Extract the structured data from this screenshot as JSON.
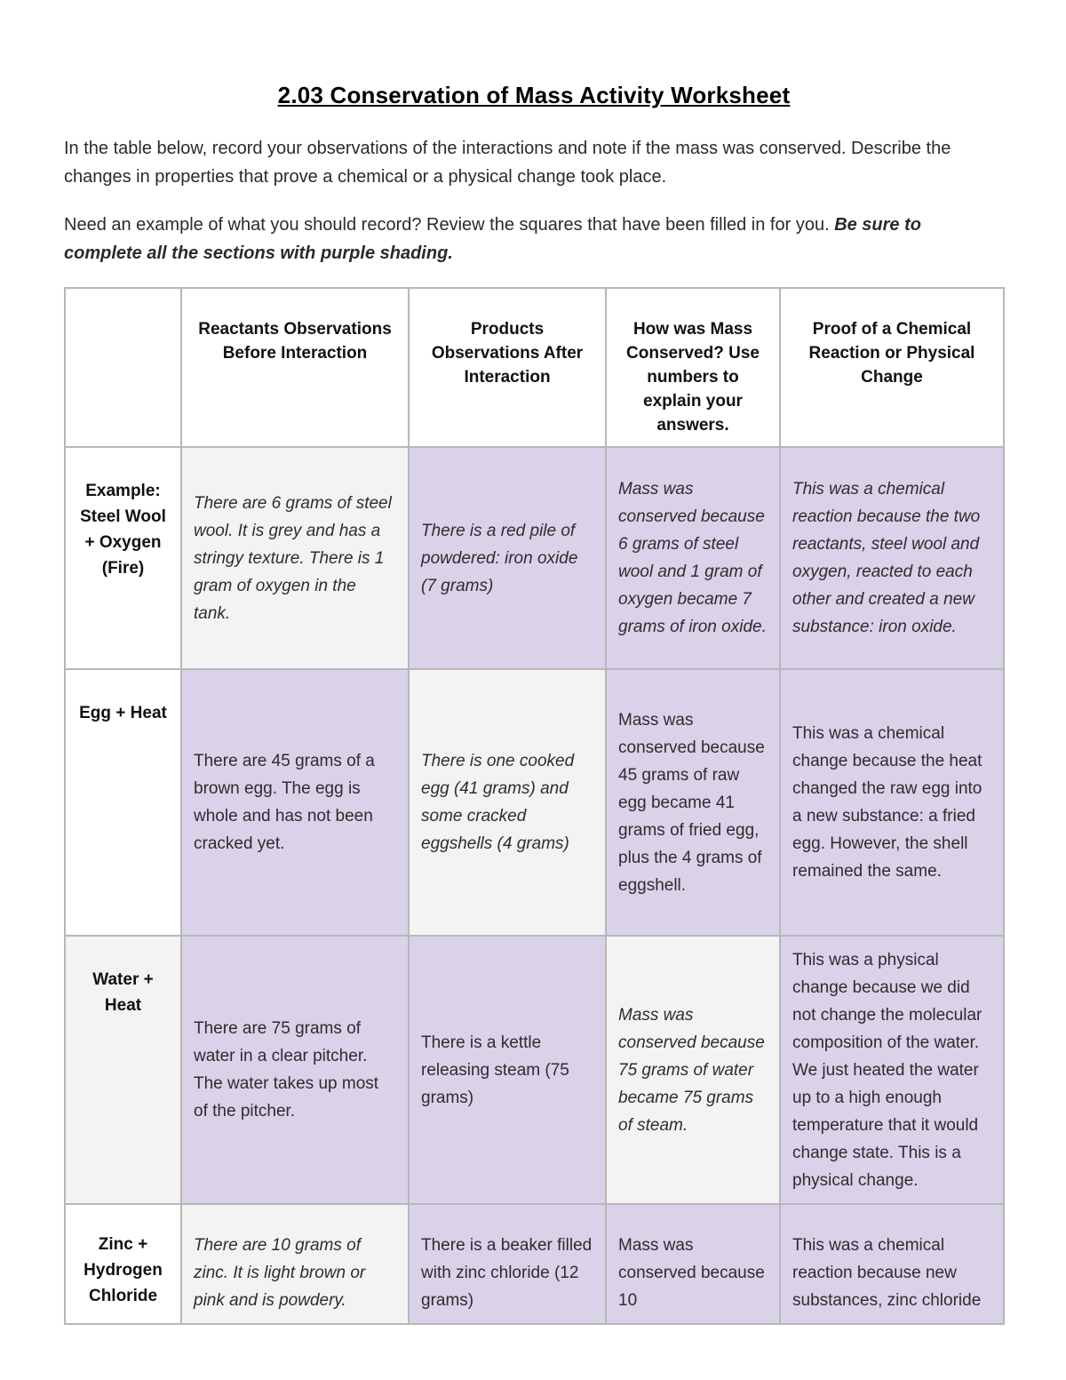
{
  "page": {
    "title": "2.03 Conservation of Mass Activity Worksheet",
    "intro_paragraph": "In the table below, record your observations of the interactions and note if the mass was conserved. Describe the changes in properties that prove a chemical or a physical change took place.",
    "instructions_normal": "Need an example of what you should record? Review the squares that have been filled in for you. ",
    "instructions_emphasis": "Be sure to complete all the sections with purple shading."
  },
  "colors": {
    "purple_shading": "#d9d2e9",
    "gray_shading": "#f3f3f3",
    "border": "#b7b7b7"
  },
  "table": {
    "headers": [
      "",
      "Reactants Observations Before Interaction",
      "Products Observations After Interaction",
      "How was Mass Conserved? Use numbers to explain your answers.",
      "Proof of a Chemical Reaction or Physical Change"
    ],
    "rows": [
      {
        "label": "Example: Steel Wool + Oxygen (Fire)",
        "label_bg": "white",
        "cells": [
          {
            "text": "There are 6 grams of steel wool. It is grey and has a stringy texture. There is 1 gram of oxygen in the tank.",
            "bg": "gray",
            "italic": true
          },
          {
            "text": "There is a red pile of powdered: iron oxide (7 grams)",
            "bg": "purple",
            "italic": true
          },
          {
            "text": "Mass was conserved because 6 grams of steel wool and 1 gram of oxygen became 7 grams of iron oxide.",
            "bg": "purple",
            "italic": true
          },
          {
            "text": "This was a chemical reaction because the two reactants, steel wool and oxygen, reacted to each other and created a new substance: iron oxide.",
            "bg": "purple",
            "italic": true
          }
        ]
      },
      {
        "label": "Egg + Heat",
        "label_bg": "white",
        "cells": [
          {
            "text": "There are 45 grams of a brown egg. The egg is whole and has not been cracked yet.",
            "bg": "purple",
            "italic": false
          },
          {
            "text": "There is one cooked egg (41 grams) and some cracked eggshells (4 grams)",
            "bg": "gray",
            "italic": true
          },
          {
            "text": "Mass was conserved because 45 grams of raw egg became 41 grams of fried egg, plus the 4 grams of eggshell.",
            "bg": "purple",
            "italic": false
          },
          {
            "text": "This was a chemical change because the heat changed the raw egg into a new substance: a fried egg. However, the shell remained the same.",
            "bg": "purple",
            "italic": false
          }
        ]
      },
      {
        "label": "Water + Heat",
        "label_bg": "gray",
        "cells": [
          {
            "text": "There are 75 grams of water in a clear pitcher. The water takes up most of the pitcher.",
            "bg": "purple",
            "italic": false
          },
          {
            "text": "There is a kettle releasing steam (75 grams)",
            "bg": "purple",
            "italic": false
          },
          {
            "text": "Mass was conserved because 75 grams of water became 75 grams of steam.",
            "bg": "gray",
            "italic": true
          },
          {
            "text": "This was a physical change because we did not change the molecular composition of the water. We just heated the water up to a high enough temperature that it would change state. This is a physical change.",
            "bg": "purple",
            "italic": false
          }
        ]
      },
      {
        "label": "Zinc + Hydrogen Chloride",
        "label_bg": "white",
        "cells": [
          {
            "text": "There are 10 grams of zinc. It is light brown or pink and is powdery.",
            "bg": "gray",
            "italic": true
          },
          {
            "text": "There is a beaker filled with zinc chloride (12 grams)",
            "bg": "purple",
            "italic": false
          },
          {
            "text": "Mass was conserved because 10",
            "bg": "purple",
            "italic": false
          },
          {
            "text": "This was a chemical reaction because new substances, zinc chloride",
            "bg": "purple",
            "italic": false
          }
        ]
      }
    ]
  }
}
